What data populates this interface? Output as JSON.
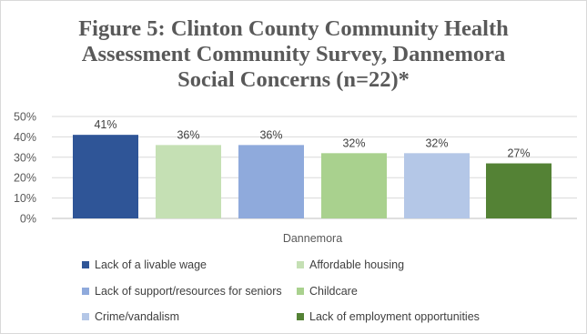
{
  "chart_data": {
    "type": "bar",
    "title_lines": [
      "Figure 5: Clinton County Community Health",
      "Assessment Community Survey, Dannemora",
      "Social Concerns (n=22)*"
    ],
    "categories": [
      "Dannemora"
    ],
    "xlabel": "",
    "ylabel": "",
    "ylim": [
      0,
      50
    ],
    "yticks": [
      "0%",
      "10%",
      "20%",
      "30%",
      "40%",
      "50%"
    ],
    "grid": true,
    "legend_position": "bottom",
    "series": [
      {
        "name": "Lack of a livable wage",
        "values": [
          41
        ],
        "label": "41%",
        "color": "#2f5597"
      },
      {
        "name": "Affordable housing",
        "values": [
          36
        ],
        "label": "36%",
        "color": "#c5e0b4"
      },
      {
        "name": "Lack of support/resources for seniors",
        "values": [
          36
        ],
        "label": "36%",
        "color": "#8faadc"
      },
      {
        "name": "Childcare",
        "values": [
          32
        ],
        "label": "32%",
        "color": "#a9d18e"
      },
      {
        "name": "Crime/vandalism",
        "values": [
          32
        ],
        "label": "32%",
        "color": "#b4c7e7"
      },
      {
        "name": "Lack of employment opportunities",
        "values": [
          27
        ],
        "label": "27%",
        "color": "#548235"
      }
    ]
  }
}
